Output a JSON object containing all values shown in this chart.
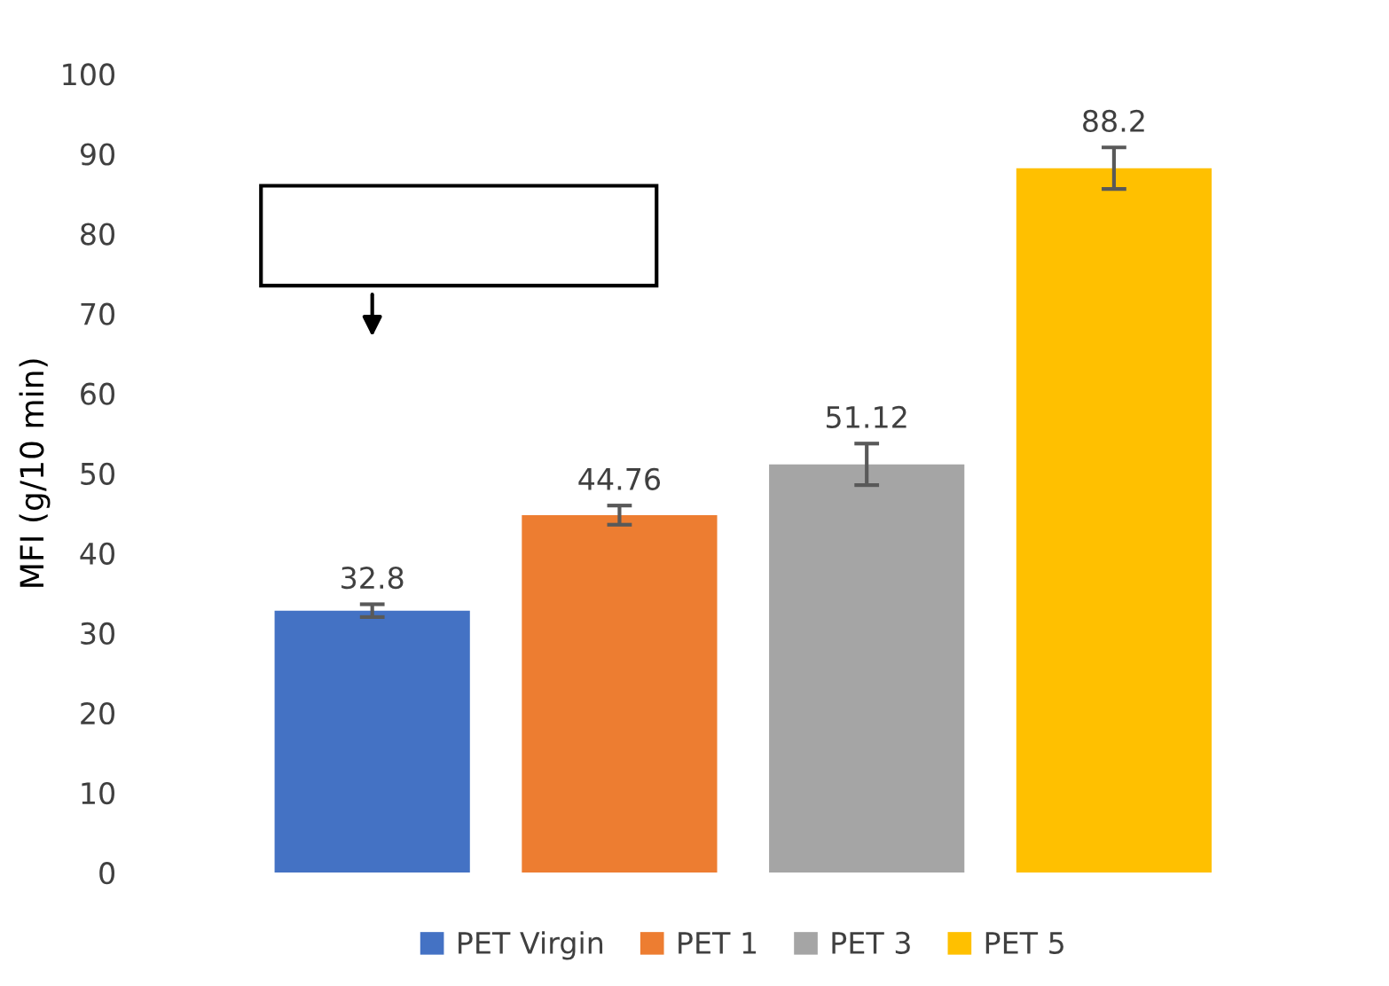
{
  "chart_data": {
    "type": "bar",
    "ylabel": "MFI (g/10 min)",
    "categories": [
      null
    ],
    "series": [
      {
        "name": "PET Virgin",
        "color": "#4472c4",
        "values": [
          32.8
        ],
        "errors": [
          0.8
        ]
      },
      {
        "name": "PET 1",
        "color": "#ed7d31",
        "values": [
          44.76
        ],
        "errors": [
          1.2
        ]
      },
      {
        "name": "PET 3",
        "color": "#a5a5a5",
        "values": [
          51.12
        ],
        "errors": [
          2.6
        ]
      },
      {
        "name": "PET 5",
        "color": "#ffc000",
        "values": [
          88.2
        ],
        "errors": [
          2.6
        ]
      }
    ],
    "ylim": [
      0,
      100
    ],
    "yticks": [
      0,
      10,
      20,
      30,
      40,
      50,
      60,
      70,
      80,
      90,
      100
    ],
    "data_labels": true,
    "grid": false,
    "legend": "bottom",
    "tick_labels": "y"
  }
}
